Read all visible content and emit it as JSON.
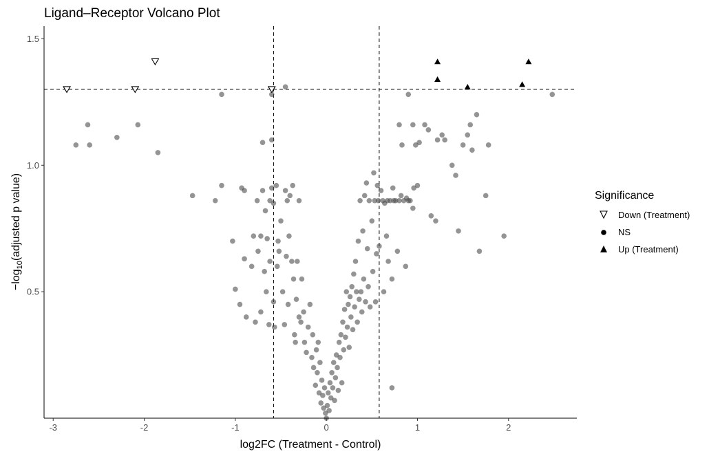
{
  "chart_data": {
    "type": "scatter",
    "title": "Ligand–Receptor Volcano Plot",
    "xlabel": "log2FC (Treatment - Control)",
    "ylabel_prefix": "−log",
    "ylabel_sub": "10",
    "ylabel_suffix": "(adjusted p value)",
    "xlim": [
      -3.1,
      2.75
    ],
    "ylim": [
      0.0,
      1.55
    ],
    "xticks": [
      -3,
      -2,
      -1,
      0,
      1,
      2
    ],
    "yticks": [
      0.5,
      1.0,
      1.5
    ],
    "xtick_labels": [
      "-3",
      "-2",
      "-1",
      "0",
      "1",
      "2"
    ],
    "ytick_labels": [
      "0.5",
      "1.0",
      "1.5"
    ],
    "thresholds": {
      "fc": [
        -0.58,
        0.58
      ],
      "p": 1.3
    },
    "legend": {
      "title": "Significance",
      "entries": [
        {
          "label": "Down (Treatment)",
          "shape": "triangle-down-open"
        },
        {
          "label": "NS",
          "shape": "circle"
        },
        {
          "label": "Up (Treatment)",
          "shape": "triangle-up"
        }
      ]
    },
    "colors": {
      "ns": "#4d4d4d",
      "marker": "#000000",
      "axis": "#000000"
    },
    "series": [
      {
        "name": "Down (Treatment)",
        "shape": "triangle-down-open",
        "points": [
          [
            -2.85,
            1.3
          ],
          [
            -2.1,
            1.3
          ],
          [
            -1.88,
            1.41
          ],
          [
            -0.6,
            1.3
          ]
        ]
      },
      {
        "name": "Up (Treatment)",
        "shape": "triangle-up",
        "points": [
          [
            1.22,
            1.41
          ],
          [
            1.22,
            1.34
          ],
          [
            1.55,
            1.31
          ],
          [
            2.15,
            1.32
          ],
          [
            2.22,
            1.41
          ]
        ]
      },
      {
        "name": "NS",
        "shape": "circle",
        "points": [
          [
            -2.75,
            1.08
          ],
          [
            -2.62,
            1.16
          ],
          [
            -2.6,
            1.08
          ],
          [
            -2.3,
            1.11
          ],
          [
            -2.07,
            1.16
          ],
          [
            -1.85,
            1.05
          ],
          [
            -1.15,
            1.28
          ],
          [
            -0.6,
            1.28
          ],
          [
            -0.45,
            1.31
          ],
          [
            -0.7,
            1.09
          ],
          [
            -0.6,
            1.1
          ],
          [
            -1.47,
            0.88
          ],
          [
            -1.22,
            0.86
          ],
          [
            -1.15,
            0.92
          ],
          [
            -1.03,
            0.7
          ],
          [
            -1.0,
            0.51
          ],
          [
            -0.95,
            0.45
          ],
          [
            -0.93,
            0.91
          ],
          [
            -0.9,
            0.9
          ],
          [
            -0.9,
            0.63
          ],
          [
            -0.88,
            0.4
          ],
          [
            -0.82,
            0.6
          ],
          [
            -0.8,
            0.72
          ],
          [
            -0.78,
            0.38
          ],
          [
            -0.76,
            0.86
          ],
          [
            -0.75,
            0.66
          ],
          [
            -0.72,
            0.72
          ],
          [
            -0.72,
            0.42
          ],
          [
            -0.7,
            0.9
          ],
          [
            -0.68,
            0.58
          ],
          [
            -0.67,
            0.82
          ],
          [
            -0.66,
            0.5
          ],
          [
            -0.65,
            0.71
          ],
          [
            -0.63,
            0.37
          ],
          [
            -0.62,
            0.86
          ],
          [
            -0.62,
            0.62
          ],
          [
            -0.6,
            0.91
          ],
          [
            -0.58,
            0.85
          ],
          [
            -0.58,
            0.46
          ],
          [
            -0.57,
            0.36
          ],
          [
            -0.55,
            0.92
          ],
          [
            -0.54,
            0.6
          ],
          [
            -0.53,
            0.7
          ],
          [
            -0.52,
            0.66
          ],
          [
            -0.5,
            0.78
          ],
          [
            -0.48,
            0.5
          ],
          [
            -0.46,
            0.37
          ],
          [
            -0.45,
            0.9
          ],
          [
            -0.44,
            0.64
          ],
          [
            -0.43,
            0.86
          ],
          [
            -0.42,
            0.45
          ],
          [
            -0.41,
            0.72
          ],
          [
            -0.4,
            0.88
          ],
          [
            -0.38,
            0.62
          ],
          [
            -0.37,
            0.92
          ],
          [
            -0.36,
            0.55
          ],
          [
            -0.35,
            0.33
          ],
          [
            -0.34,
            0.3
          ],
          [
            -0.33,
            0.47
          ],
          [
            -0.32,
            0.62
          ],
          [
            -0.3,
            0.86
          ],
          [
            -0.3,
            0.4
          ],
          [
            -0.28,
            0.38
          ],
          [
            -0.27,
            0.55
          ],
          [
            -0.25,
            0.42
          ],
          [
            -0.24,
            0.3
          ],
          [
            -0.22,
            0.26
          ],
          [
            -0.2,
            0.36
          ],
          [
            -0.18,
            0.45
          ],
          [
            -0.16,
            0.24
          ],
          [
            -0.15,
            0.33
          ],
          [
            -0.14,
            0.2
          ],
          [
            -0.12,
            0.13
          ],
          [
            -0.11,
            0.27
          ],
          [
            -0.1,
            0.18
          ],
          [
            -0.09,
            0.3
          ],
          [
            -0.08,
            0.1
          ],
          [
            -0.07,
            0.22
          ],
          [
            -0.06,
            0.06
          ],
          [
            -0.05,
            0.15
          ],
          [
            -0.04,
            0.09
          ],
          [
            -0.03,
            0.04
          ],
          [
            -0.02,
            0.12
          ],
          [
            -0.01,
            0.02
          ],
          [
            0.0,
            0.0
          ],
          [
            0.01,
            0.05
          ],
          [
            0.02,
            0.1
          ],
          [
            0.03,
            0.03
          ],
          [
            0.04,
            0.14
          ],
          [
            0.05,
            0.08
          ],
          [
            0.06,
            0.18
          ],
          [
            0.07,
            0.12
          ],
          [
            0.08,
            0.22
          ],
          [
            0.09,
            0.07
          ],
          [
            0.1,
            0.16
          ],
          [
            0.11,
            0.25
          ],
          [
            0.12,
            0.2
          ],
          [
            0.13,
            0.11
          ],
          [
            0.14,
            0.3
          ],
          [
            0.15,
            0.24
          ],
          [
            0.16,
            0.33
          ],
          [
            0.17,
            0.14
          ],
          [
            0.18,
            0.38
          ],
          [
            0.19,
            0.27
          ],
          [
            0.2,
            0.43
          ],
          [
            0.21,
            0.32
          ],
          [
            0.22,
            0.5
          ],
          [
            0.23,
            0.36
          ],
          [
            0.24,
            0.45
          ],
          [
            0.25,
            0.28
          ],
          [
            0.26,
            0.48
          ],
          [
            0.27,
            0.4
          ],
          [
            0.28,
            0.52
          ],
          [
            0.29,
            0.35
          ],
          [
            0.3,
            0.57
          ],
          [
            0.31,
            0.44
          ],
          [
            0.32,
            0.62
          ],
          [
            0.33,
            0.5
          ],
          [
            0.34,
            0.38
          ],
          [
            0.35,
            0.7
          ],
          [
            0.36,
            0.47
          ],
          [
            0.37,
            0.86
          ],
          [
            0.38,
            0.5
          ],
          [
            0.39,
            0.42
          ],
          [
            0.4,
            0.74
          ],
          [
            0.41,
            0.55
          ],
          [
            0.42,
            0.88
          ],
          [
            0.43,
            0.46
          ],
          [
            0.44,
            0.93
          ],
          [
            0.45,
            0.67
          ],
          [
            0.46,
            0.52
          ],
          [
            0.47,
            0.86
          ],
          [
            0.48,
            0.44
          ],
          [
            0.5,
            0.78
          ],
          [
            0.51,
            0.58
          ],
          [
            0.52,
            0.97
          ],
          [
            0.53,
            0.86
          ],
          [
            0.54,
            0.46
          ],
          [
            0.55,
            0.65
          ],
          [
            0.56,
            0.92
          ],
          [
            0.57,
            0.86
          ],
          [
            0.58,
            0.68
          ],
          [
            0.6,
            0.9
          ],
          [
            0.62,
            0.86
          ],
          [
            0.63,
            0.5
          ],
          [
            0.64,
            0.85
          ],
          [
            0.66,
            0.72
          ],
          [
            0.67,
            0.86
          ],
          [
            0.68,
            0.62
          ],
          [
            0.7,
            0.86
          ],
          [
            0.72,
            0.55
          ],
          [
            0.73,
            0.91
          ],
          [
            0.74,
            0.86
          ],
          [
            0.76,
            0.86
          ],
          [
            0.78,
            0.66
          ],
          [
            0.8,
            0.86
          ],
          [
            0.82,
            0.88
          ],
          [
            0.85,
            0.86
          ],
          [
            0.87,
            0.6
          ],
          [
            0.88,
            0.87
          ],
          [
            0.9,
            0.86
          ],
          [
            0.92,
            0.86
          ],
          [
            0.95,
            0.83
          ],
          [
            0.96,
            0.91
          ],
          [
            1.0,
            0.92
          ],
          [
            0.72,
            0.12
          ],
          [
            0.8,
            1.16
          ],
          [
            0.83,
            1.08
          ],
          [
            0.9,
            1.28
          ],
          [
            0.95,
            1.16
          ],
          [
            0.98,
            1.08
          ],
          [
            1.02,
            1.09
          ],
          [
            1.08,
            1.16
          ],
          [
            1.12,
            1.14
          ],
          [
            1.15,
            0.8
          ],
          [
            1.2,
            0.78
          ],
          [
            1.22,
            1.1
          ],
          [
            1.27,
            1.12
          ],
          [
            1.3,
            1.1
          ],
          [
            1.38,
            1.0
          ],
          [
            1.42,
            0.96
          ],
          [
            1.45,
            0.74
          ],
          [
            1.5,
            1.08
          ],
          [
            1.55,
            1.12
          ],
          [
            1.58,
            1.16
          ],
          [
            1.6,
            1.06
          ],
          [
            1.65,
            1.2
          ],
          [
            1.68,
            0.66
          ],
          [
            1.75,
            0.88
          ],
          [
            1.78,
            1.08
          ],
          [
            1.95,
            0.72
          ],
          [
            2.48,
            1.28
          ]
        ]
      }
    ]
  }
}
